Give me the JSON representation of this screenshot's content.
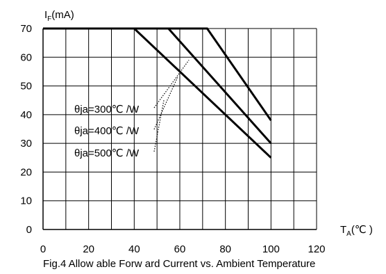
{
  "chart_data": {
    "type": "line",
    "title": "",
    "caption": "Fig.4 Allow able Forw ard Current vs. Ambient Temperature",
    "ylabel": {
      "main": "I",
      "sub": "F",
      "rest": "(mA)"
    },
    "xlabel": {
      "main": "T",
      "sub": "A",
      "rest": "(℃ )"
    },
    "xlim": [
      0,
      120
    ],
    "ylim": [
      0,
      70
    ],
    "xticks": [
      "0",
      "20",
      "40",
      "60",
      "80",
      "100",
      "120"
    ],
    "yticks": [
      "0",
      "10",
      "20",
      "30",
      "40",
      "50",
      "60",
      "70"
    ],
    "grid": true,
    "series": [
      {
        "name": "θja=300℃ /W",
        "x": [
          0,
          72,
          100
        ],
        "y": [
          70,
          70,
          38
        ]
      },
      {
        "name": "θja=400℃ /W",
        "x": [
          0,
          55,
          100
        ],
        "y": [
          70,
          70,
          30
        ]
      },
      {
        "name": "θja=500℃ /W",
        "x": [
          0,
          40,
          100
        ],
        "y": [
          70,
          70,
          25
        ]
      }
    ],
    "annotations": [
      {
        "label": "θja=300℃ /W",
        "points_to": [
          64,
          59
        ]
      },
      {
        "label": "θja=400℃ /W",
        "points_to": [
          59,
          53
        ]
      },
      {
        "label": "θja=500℃ /W",
        "points_to": [
          53,
          45
        ]
      }
    ]
  }
}
